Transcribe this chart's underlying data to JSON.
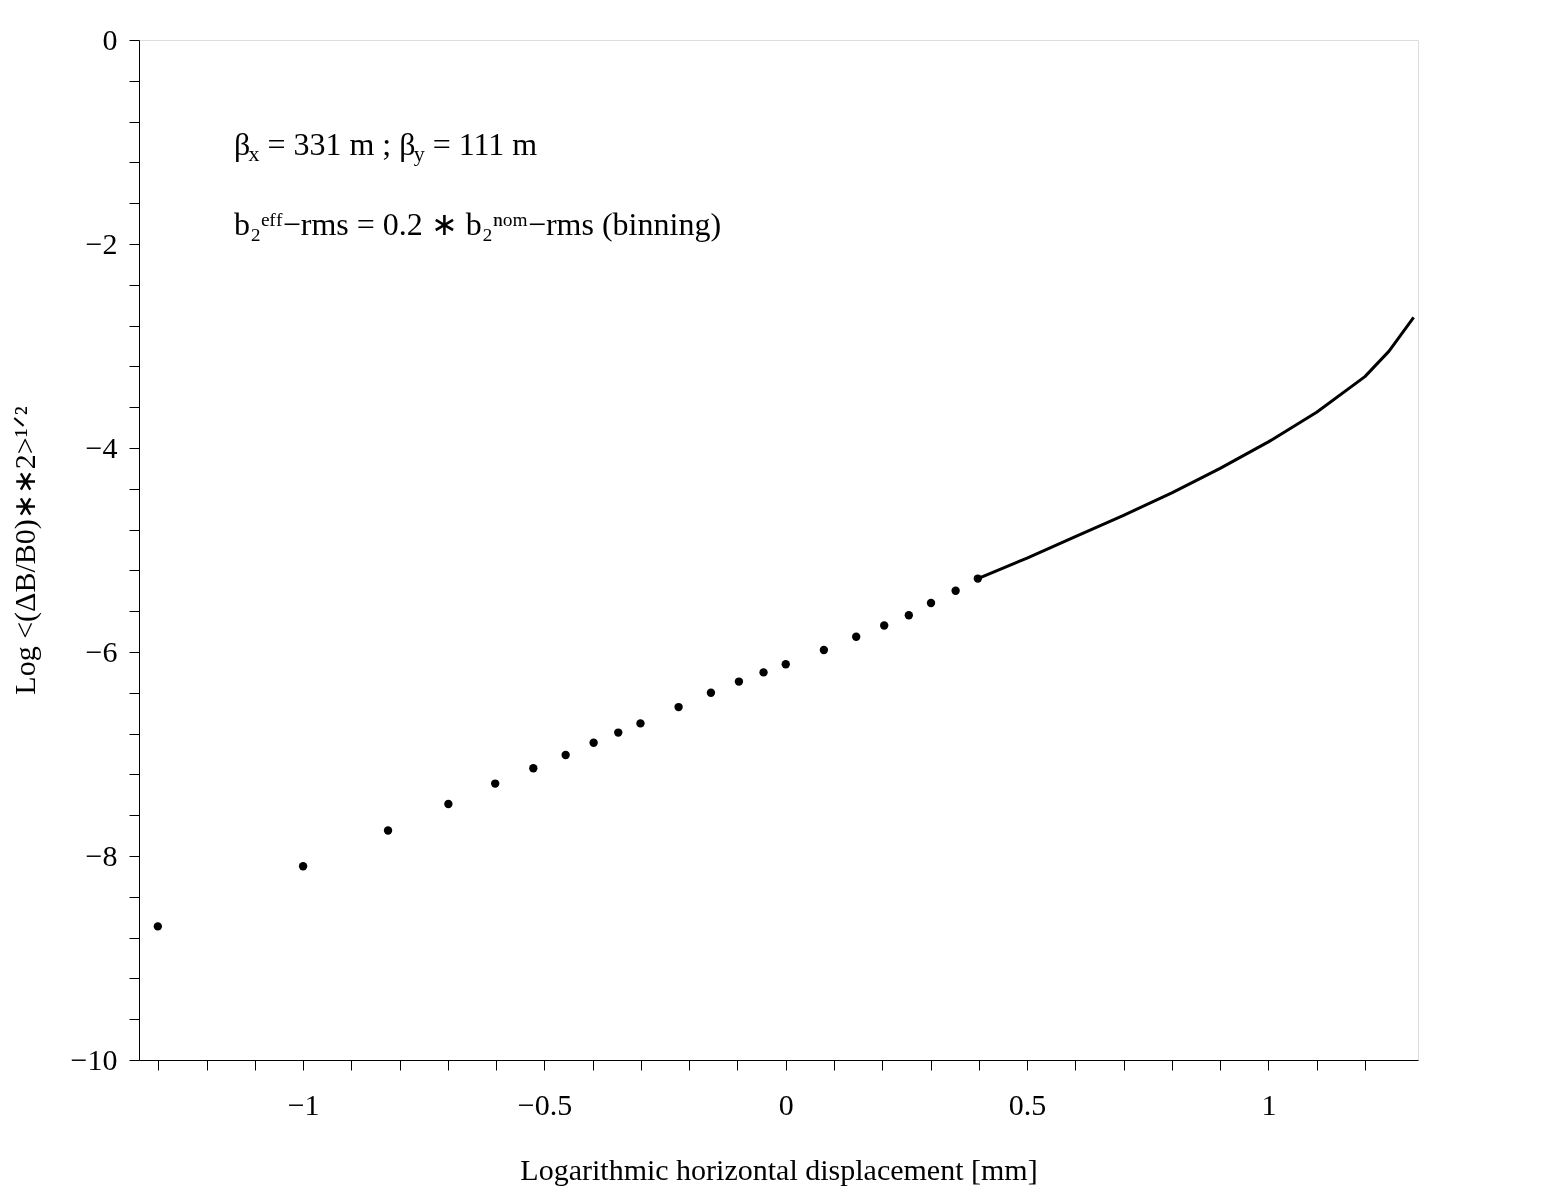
{
  "chart_data": {
    "type": "scatter",
    "xlabel": "Logarithmic horizontal displacement [mm]",
    "ylabel": "Log <(ΔB/B0)∗∗2>¹ᐟ²",
    "annotations": [
      "β$_{x}$ = 331 m ; β$_{y}$ = 111 m",
      "b₂ᵉᶠᶠ−rms = 0.2 ∗ b₂ⁿᵒᵐ−rms  (binning)"
    ],
    "series": [
      {
        "marker": "circle",
        "color": "#000000",
        "x": [
          -1.301,
          -1.0,
          -0.824,
          -0.699,
          -0.602,
          -0.523,
          -0.456,
          -0.398,
          -0.347,
          -0.301,
          -0.222,
          -0.155,
          -0.097,
          -0.046,
          0.0,
          0.079,
          0.146,
          0.204,
          0.255,
          0.301,
          0.352,
          0.398
        ],
        "values": [
          -8.69,
          -8.1,
          -7.75,
          -7.49,
          -7.29,
          -7.14,
          -7.01,
          -6.89,
          -6.79,
          -6.7,
          -6.54,
          -6.4,
          -6.29,
          -6.2,
          -6.12,
          -5.98,
          -5.85,
          -5.74,
          -5.64,
          -5.52,
          -5.4,
          -5.28
        ]
      },
      {
        "type": "line",
        "marker": "none",
        "color": "#000000",
        "x": [
          0.398,
          0.5,
          0.6,
          0.7,
          0.8,
          0.9,
          1.0,
          1.1,
          1.2,
          1.25,
          1.301
        ],
        "values": [
          -5.28,
          -5.08,
          -4.87,
          -4.66,
          -4.44,
          -4.2,
          -3.94,
          -3.65,
          -3.3,
          -3.05,
          -2.72
        ]
      }
    ],
    "xlim": [
      -1.34,
      1.31
    ],
    "ylim": [
      -10,
      0
    ],
    "xticks": [
      {
        "value": -1.3,
        "label": null
      },
      {
        "value": -1.2,
        "label": null
      },
      {
        "value": -1.1,
        "label": null
      },
      {
        "value": -1,
        "label": "−1"
      },
      {
        "value": -0.9,
        "label": null
      },
      {
        "value": -0.8,
        "label": null
      },
      {
        "value": -0.7,
        "label": null
      },
      {
        "value": -0.6,
        "label": null
      },
      {
        "value": -0.5,
        "label": "−0.5"
      },
      {
        "value": -0.4,
        "label": null
      },
      {
        "value": -0.3,
        "label": null
      },
      {
        "value": -0.2,
        "label": null
      },
      {
        "value": -0.1,
        "label": null
      },
      0,
      {
        "value": 0.1,
        "label": null
      },
      {
        "value": 0.2,
        "label": null
      },
      {
        "value": 0.3,
        "label": null
      },
      {
        "value": 0.4,
        "label": null
      },
      0.5,
      {
        "value": 0.6,
        "label": null
      },
      {
        "value": 0.7,
        "label": null
      },
      {
        "value": 0.8,
        "label": null
      },
      {
        "value": 0.9,
        "label": null
      },
      1,
      {
        "value": 1.1,
        "label": null
      },
      {
        "value": 1.2,
        "label": null
      }
    ],
    "yticks": [
      {
        "value": -10,
        "label": "−10"
      },
      {
        "value": -9.6,
        "label": null
      },
      {
        "value": -9.2,
        "label": null
      },
      {
        "value": -8.8,
        "label": null
      },
      {
        "value": -8.4,
        "label": null
      },
      {
        "value": -8,
        "label": "−8"
      },
      {
        "value": -7.6,
        "label": null
      },
      {
        "value": -7.2,
        "label": null
      },
      {
        "value": -6.8,
        "label": null
      },
      {
        "value": -6.4,
        "label": null
      },
      {
        "value": -6,
        "label": "−6"
      },
      {
        "value": -5.6,
        "label": null
      },
      {
        "value": -5.2,
        "label": null
      },
      {
        "value": -4.8,
        "label": null
      },
      {
        "value": -4.4,
        "label": null
      },
      {
        "value": -4,
        "label": "−4"
      },
      {
        "value": -3.6,
        "label": null
      },
      {
        "value": -3.2,
        "label": null
      },
      {
        "value": -2.8,
        "label": null
      },
      {
        "value": -2.4,
        "label": null
      },
      {
        "value": -2,
        "label": "−2"
      },
      {
        "value": -1.6,
        "label": null
      },
      {
        "value": -1.2,
        "label": null
      },
      {
        "value": -0.8,
        "label": null
      },
      {
        "value": -0.4,
        "label": null
      },
      0
    ],
    "grid": false
  }
}
